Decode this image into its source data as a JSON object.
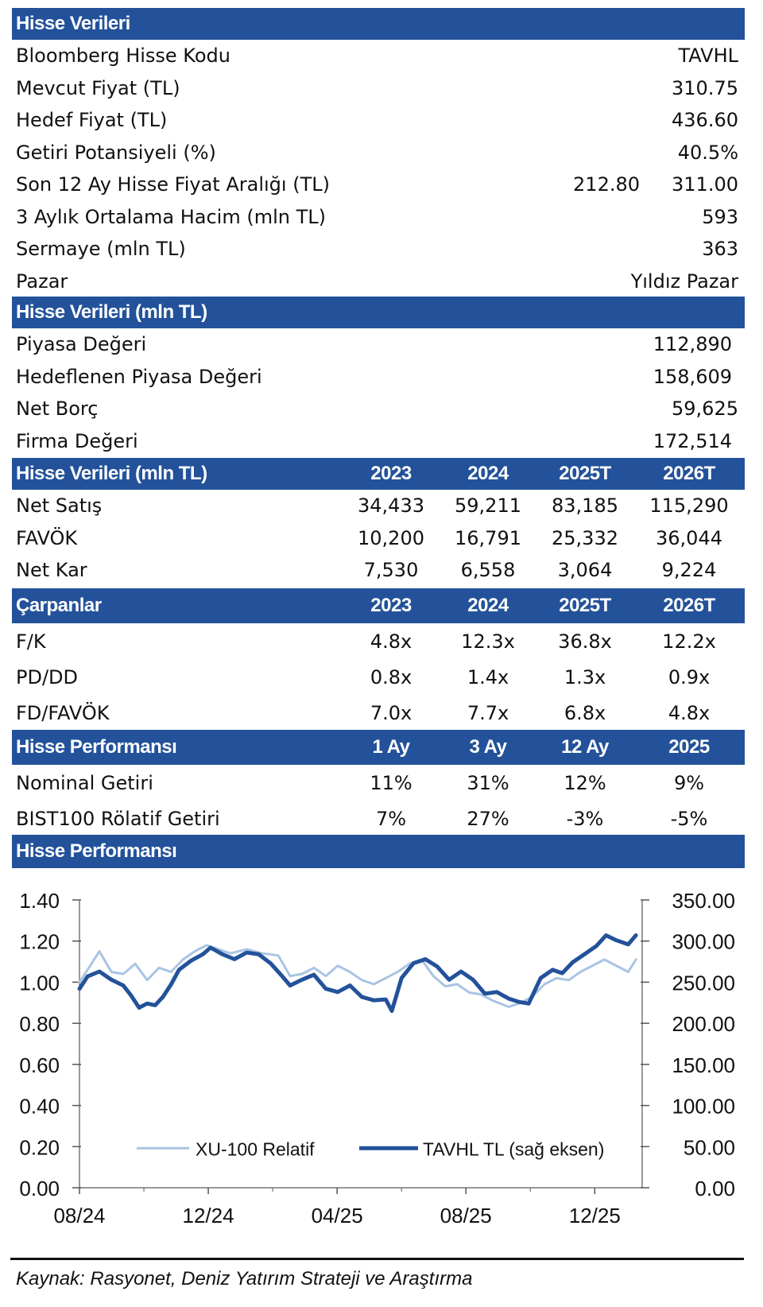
{
  "section1": {
    "title": "Hisse Verileri",
    "rows": [
      {
        "label": "Bloomberg Hisse Kodu",
        "value": "TAVHL"
      },
      {
        "label": "Mevcut Fiyat (TL)",
        "value": "310.75"
      },
      {
        "label": "Hedef Fiyat (TL)",
        "value": "436.60"
      },
      {
        "label": "Getiri Potansiyeli (%)",
        "value": "40.5%"
      },
      {
        "label": "Son 12 Ay Hisse Fiyat Aralığı (TL)",
        "low": "212.80",
        "value": "311.00"
      },
      {
        "label": "3 Aylık Ortalama Hacim (mln TL)",
        "value": "593"
      },
      {
        "label": "Sermaye (mln TL)",
        "value": "363"
      },
      {
        "label": "Pazar",
        "value": "Yıldız Pazar"
      }
    ]
  },
  "section2": {
    "title": "Hisse Verileri (mln TL)",
    "rows": [
      {
        "label": "Piyasa Değeri",
        "value": "112,890"
      },
      {
        "label": "Hedeflenen Piyasa Değeri",
        "value": "158,609"
      },
      {
        "label": "Net Borç",
        "value": "59,625"
      },
      {
        "label": "Firma Değeri",
        "value": "172,514"
      }
    ]
  },
  "section3": {
    "title": "Hisse Verileri (mln TL)",
    "columns": [
      "2023",
      "2024",
      "2025T",
      "2026T"
    ],
    "rows": [
      {
        "label": "Net Satış",
        "values": [
          "34,433",
          "59,211",
          "83,185",
          "115,290"
        ]
      },
      {
        "label": "FAVÖK",
        "values": [
          "10,200",
          "16,791",
          "25,332",
          "36,044"
        ]
      },
      {
        "label": "Net Kar",
        "values": [
          "7,530",
          "6,558",
          "3,064",
          "9,224"
        ]
      }
    ]
  },
  "section4": {
    "title": "Çarpanlar",
    "columns": [
      "2023",
      "2024",
      "2025T",
      "2026T"
    ],
    "rows": [
      {
        "label": "F/K",
        "values": [
          "4.8x",
          "12.3x",
          "36.8x",
          "12.2x"
        ]
      },
      {
        "label": "PD/DD",
        "values": [
          "0.8x",
          "1.4x",
          "1.3x",
          "0.9x"
        ]
      },
      {
        "label": "FD/FAVÖK",
        "values": [
          "7.0x",
          "7.7x",
          "6.8x",
          "4.8x"
        ]
      }
    ]
  },
  "section5": {
    "title": "Hisse Performansı",
    "columns": [
      "1 Ay",
      "3 Ay",
      "12 Ay",
      "2025"
    ],
    "rows": [
      {
        "label": "Nominal Getiri",
        "values": [
          "11%",
          "31%",
          "12%",
          "9%"
        ]
      },
      {
        "label": "BIST100 Rölatif Getiri",
        "values": [
          "7%",
          "27%",
          "-3%",
          "-5%"
        ]
      }
    ]
  },
  "section6": {
    "title": "Hisse Performansı"
  },
  "colors": {
    "header_bg": "#23529a",
    "series_tavhl": "#23529a",
    "series_xu100": "#a9c4e4"
  },
  "chart_data": {
    "type": "line",
    "title": "",
    "xlabel": "",
    "ylabel": "",
    "x_unit": "months since 08/2024",
    "x_ticks": [
      {
        "label": "08/24",
        "x": 0
      },
      {
        "label": "12/24",
        "x": 4
      },
      {
        "label": "04/25",
        "x": 8
      },
      {
        "label": "08/25",
        "x": 12
      },
      {
        "label": "12/25",
        "x": 16
      }
    ],
    "x_minor_ticks": [
      2,
      6,
      10,
      14
    ],
    "xlim": [
      0,
      17.4
    ],
    "y_left": {
      "ylim": [
        0,
        1.4
      ],
      "ticks": [
        "0.00",
        "0.20",
        "0.40",
        "0.60",
        "0.80",
        "1.00",
        "1.20",
        "1.40"
      ]
    },
    "y_right": {
      "ylim": [
        0,
        350
      ],
      "ticks": [
        "0.00",
        "50.00",
        "100.00",
        "150.00",
        "200.00",
        "250.00",
        "300.00",
        "350.00"
      ]
    },
    "grid": false,
    "legend": {
      "placement": "bottom-center"
    },
    "series": [
      {
        "name": "XU-100 Relatif",
        "axis": "left",
        "x": [
          0,
          0.25,
          0.62,
          0.99,
          1.36,
          1.73,
          2.1,
          2.47,
          2.84,
          3.21,
          3.58,
          3.95,
          4.32,
          4.69,
          5.19,
          5.68,
          6.17,
          6.54,
          6.91,
          7.28,
          7.65,
          8.02,
          8.4,
          8.77,
          9.14,
          9.51,
          9.88,
          10.25,
          10.62,
          10.99,
          11.36,
          11.73,
          12.1,
          12.47,
          12.84,
          13.33,
          13.7,
          14.07,
          14.44,
          14.81,
          15.19,
          15.56,
          15.93,
          16.3,
          16.67,
          17.04,
          17.28
        ],
        "values": [
          1.0,
          1.06,
          1.15,
          1.05,
          1.04,
          1.09,
          1.01,
          1.07,
          1.05,
          1.11,
          1.15,
          1.18,
          1.16,
          1.14,
          1.16,
          1.14,
          1.13,
          1.03,
          1.04,
          1.07,
          1.03,
          1.08,
          1.05,
          1.01,
          0.99,
          1.02,
          1.05,
          1.09,
          1.11,
          1.03,
          0.98,
          0.99,
          0.95,
          0.94,
          0.91,
          0.88,
          0.9,
          0.93,
          0.99,
          1.02,
          1.01,
          1.05,
          1.08,
          1.11,
          1.08,
          1.05,
          1.11
        ]
      },
      {
        "name": "TAVHL TL (sağ eksen)",
        "axis": "right",
        "x": [
          0,
          0.25,
          0.62,
          0.99,
          1.36,
          1.6,
          1.85,
          2.1,
          2.35,
          2.59,
          2.84,
          3.09,
          3.46,
          3.83,
          4.07,
          4.44,
          4.81,
          5.19,
          5.56,
          5.93,
          6.3,
          6.54,
          6.91,
          7.28,
          7.65,
          8.02,
          8.4,
          8.77,
          9.14,
          9.51,
          9.7,
          10.0,
          10.37,
          10.74,
          11.11,
          11.48,
          11.85,
          12.22,
          12.59,
          12.96,
          13.33,
          13.65,
          13.95,
          14.32,
          14.69,
          14.99,
          15.31,
          15.68,
          16.05,
          16.35,
          16.67,
          17.04,
          17.28
        ],
        "values": [
          242,
          257,
          263,
          253,
          246,
          234,
          219,
          224,
          222,
          232,
          247,
          265,
          276,
          284,
          292,
          284,
          278,
          286,
          284,
          273,
          257,
          246,
          253,
          259,
          242,
          238,
          246,
          232,
          228,
          229,
          215,
          255,
          273,
          278,
          269,
          253,
          263,
          253,
          236,
          238,
          230,
          226,
          224,
          255,
          265,
          261,
          274,
          284,
          294,
          307,
          301,
          296,
          307
        ]
      }
    ]
  },
  "source": "Kaynak: Rasyonet, Deniz Yatırım Strateji ve Araştırma"
}
